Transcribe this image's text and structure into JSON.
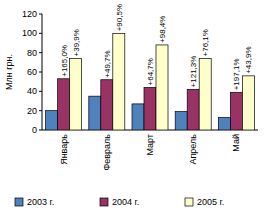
{
  "chart_data": {
    "type": "bar",
    "y_label": "Млн грн.",
    "categories": [
      "Январь",
      "Февраль",
      "Март",
      "Апрель",
      "Май"
    ],
    "series": [
      {
        "name": "2003 г.",
        "color": "#4f81bd",
        "values": [
          20,
          35,
          27,
          19,
          13
        ]
      },
      {
        "name": "2004 г.",
        "color": "#993366",
        "values": [
          53,
          52,
          44,
          42,
          39
        ],
        "annotations": [
          "+165,0%",
          "+49,7%",
          "+64,7%",
          "+121,3%",
          "+197,1%"
        ]
      },
      {
        "name": "2005 г.",
        "color": "#ffffcc",
        "values": [
          74,
          100,
          88,
          74,
          56
        ],
        "annotations": [
          "+39,9%",
          "+90,5%",
          "+98,4%",
          "+76,1%",
          "+43,9%"
        ]
      }
    ],
    "ylim": [
      0,
      120
    ],
    "yticks": [
      0,
      20,
      40,
      60,
      80,
      100,
      120
    ],
    "legend": "bottom"
  }
}
